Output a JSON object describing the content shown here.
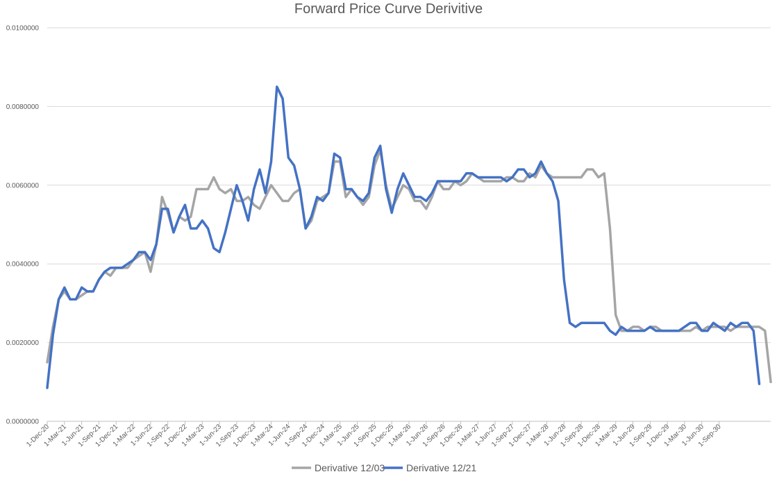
{
  "chart_data": {
    "type": "line",
    "title": "Forward Price Curve Derivitive",
    "xlabel": "",
    "ylabel": "",
    "ylim": [
      0,
      0.01
    ],
    "yticks": [
      "0.0000000",
      "0.0020000",
      "0.0040000",
      "0.0060000",
      "0.0080000",
      "0.0100000"
    ],
    "ytick_values": [
      0,
      0.002,
      0.004,
      0.006,
      0.008,
      0.01
    ],
    "x_start": "1-Dec-20",
    "x_end": "1-Dec-30",
    "xtick_labels": [
      "1-Dec-20",
      "1-Mar-21",
      "1-Jun-21",
      "1-Sep-21",
      "1-Dec-21",
      "1-Mar-22",
      "1-Jun-22",
      "1-Sep-22",
      "1-Dec-22",
      "1-Mar-23",
      "1-Jun-23",
      "1-Sep-23",
      "1-Dec-23",
      "1-Mar-24",
      "1-Jun-24",
      "1-Sep-24",
      "1-Dec-24",
      "1-Mar-25",
      "1-Jun-25",
      "1-Sep-25",
      "1-Dec-25",
      "1-Mar-26",
      "1-Jun-26",
      "1-Sep-26",
      "1-Dec-26",
      "1-Mar-27",
      "1-Jun-27",
      "1-Sep-27",
      "1-Dec-27",
      "1-Mar-28",
      "1-Jun-28",
      "1-Sep-28",
      "1-Dec-28",
      "1-Mar-29",
      "1-Jun-29",
      "1-Sep-29",
      "1-Dec-29",
      "1-Mar-30",
      "1-Jun-30",
      "1-Sep-30"
    ],
    "grid": true,
    "legend_position": "bottom",
    "series": [
      {
        "name": "Derivative 12/03",
        "color": "#a5a5a5",
        "values": [
          0.0015,
          0.0024,
          0.0031,
          0.0033,
          0.0031,
          0.0031,
          0.0032,
          0.0033,
          0.0033,
          0.0036,
          0.0038,
          0.0037,
          0.0039,
          0.0039,
          0.0039,
          0.0041,
          0.0042,
          0.0043,
          0.0038,
          0.0045,
          0.0057,
          0.0053,
          0.0048,
          0.0052,
          0.0051,
          0.0052,
          0.0059,
          0.0059,
          0.0059,
          0.0062,
          0.0059,
          0.0058,
          0.0059,
          0.0056,
          0.0056,
          0.0057,
          0.0055,
          0.0054,
          0.0057,
          0.006,
          0.0058,
          0.0056,
          0.0056,
          0.0058,
          0.0059,
          0.0049,
          0.0051,
          0.0056,
          0.0057,
          0.0058,
          0.0066,
          0.0066,
          0.0057,
          0.0059,
          0.0057,
          0.0055,
          0.0057,
          0.0065,
          0.0069,
          0.006,
          0.0054,
          0.0057,
          0.006,
          0.0059,
          0.0056,
          0.0056,
          0.0054,
          0.0057,
          0.0061,
          0.0059,
          0.0059,
          0.0061,
          0.006,
          0.0061,
          0.0063,
          0.0062,
          0.0061,
          0.0061,
          0.0061,
          0.0061,
          0.0062,
          0.0062,
          0.0061,
          0.0061,
          0.0063,
          0.0062,
          0.0065,
          0.0063,
          0.0062,
          0.0062,
          0.0062,
          0.0062,
          0.0062,
          0.0062,
          0.0064,
          0.0064,
          0.0062,
          0.0063,
          0.0049,
          0.0027,
          0.0023,
          0.0023,
          0.0024,
          0.0024,
          0.0023,
          0.0024,
          0.0024,
          0.0023,
          0.0023,
          0.0023,
          0.0023,
          0.0023,
          0.0023,
          0.0024,
          0.0023,
          0.0024,
          0.0024,
          0.0024,
          0.0024,
          0.0023,
          0.0024,
          0.0024,
          0.0024,
          0.0024,
          0.0024,
          0.0023,
          0.001
        ]
      },
      {
        "name": "Derivative 12/21",
        "color": "#4472c4",
        "values": [
          0.00085,
          0.0022,
          0.0031,
          0.0034,
          0.0031,
          0.0031,
          0.0034,
          0.0033,
          0.0033,
          0.0036,
          0.0038,
          0.0039,
          0.0039,
          0.0039,
          0.004,
          0.0041,
          0.0043,
          0.0043,
          0.0041,
          0.0045,
          0.0054,
          0.0054,
          0.0048,
          0.0052,
          0.0055,
          0.0049,
          0.0049,
          0.0051,
          0.0049,
          0.0044,
          0.0043,
          0.0048,
          0.0054,
          0.006,
          0.0056,
          0.0051,
          0.0059,
          0.0064,
          0.0058,
          0.0066,
          0.0085,
          0.0082,
          0.0067,
          0.0065,
          0.0059,
          0.0049,
          0.0052,
          0.0057,
          0.0056,
          0.0058,
          0.0068,
          0.0067,
          0.0059,
          0.0059,
          0.0057,
          0.0056,
          0.0058,
          0.0067,
          0.007,
          0.0059,
          0.0053,
          0.0059,
          0.0063,
          0.006,
          0.0057,
          0.0057,
          0.0056,
          0.0058,
          0.0061,
          0.0061,
          0.0061,
          0.0061,
          0.0061,
          0.0063,
          0.0063,
          0.0062,
          0.0062,
          0.0062,
          0.0062,
          0.0062,
          0.0061,
          0.0062,
          0.0064,
          0.0064,
          0.0062,
          0.0063,
          0.0066,
          0.0063,
          0.0061,
          0.0056,
          0.0036,
          0.0025,
          0.0024,
          0.0025,
          0.0025,
          0.0025,
          0.0025,
          0.0025,
          0.0023,
          0.0022,
          0.0024,
          0.0023,
          0.0023,
          0.0023,
          0.0023,
          0.0024,
          0.0023,
          0.0023,
          0.0023,
          0.0023,
          0.0023,
          0.0024,
          0.0025,
          0.0025,
          0.0023,
          0.0023,
          0.0025,
          0.0024,
          0.0023,
          0.0025,
          0.0024,
          0.0025,
          0.0025,
          0.0023,
          0.00095
        ]
      }
    ]
  }
}
